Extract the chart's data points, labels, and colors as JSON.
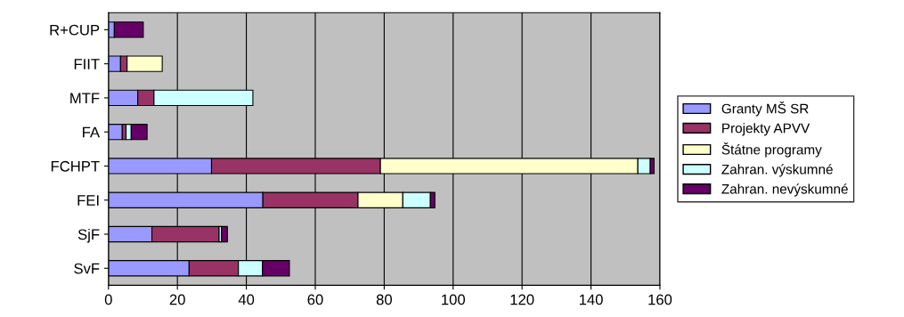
{
  "chart_data": {
    "type": "bar",
    "orientation": "horizontal",
    "stacked": true,
    "categories": [
      "R+CUP",
      "FIIT",
      "MTF",
      "FA",
      "FCHPT",
      "FEI",
      "SjF",
      "SvF"
    ],
    "series": [
      {
        "name": "Granty MŠ SR",
        "color": "#9999ff",
        "values": [
          1.7,
          3.5,
          8.5,
          4.0,
          29.9,
          44.8,
          12.6,
          23.4
        ]
      },
      {
        "name": "Projekty APVV",
        "color": "#993366",
        "values": [
          0,
          1.9,
          4.7,
          1.1,
          49.0,
          27.6,
          19.5,
          14.3
        ]
      },
      {
        "name": "Štátne programy",
        "color": "#ffffcc",
        "values": [
          0,
          10.2,
          0,
          0,
          74.7,
          13.0,
          0,
          0
        ]
      },
      {
        "name": "Zahran. výskumné",
        "color": "#ccffff",
        "values": [
          0,
          0,
          28.7,
          1.5,
          3.6,
          8.0,
          0.7,
          7.0
        ]
      },
      {
        "name": "Zahran. nevýskumné",
        "color": "#660066",
        "values": [
          8.4,
          0,
          0,
          4.6,
          1.1,
          1.3,
          1.7,
          7.8
        ]
      }
    ],
    "xlim": [
      0,
      160
    ],
    "xticks": [
      0,
      20,
      40,
      60,
      80,
      100,
      120,
      140,
      160
    ],
    "grid": "x",
    "legend": "right"
  }
}
